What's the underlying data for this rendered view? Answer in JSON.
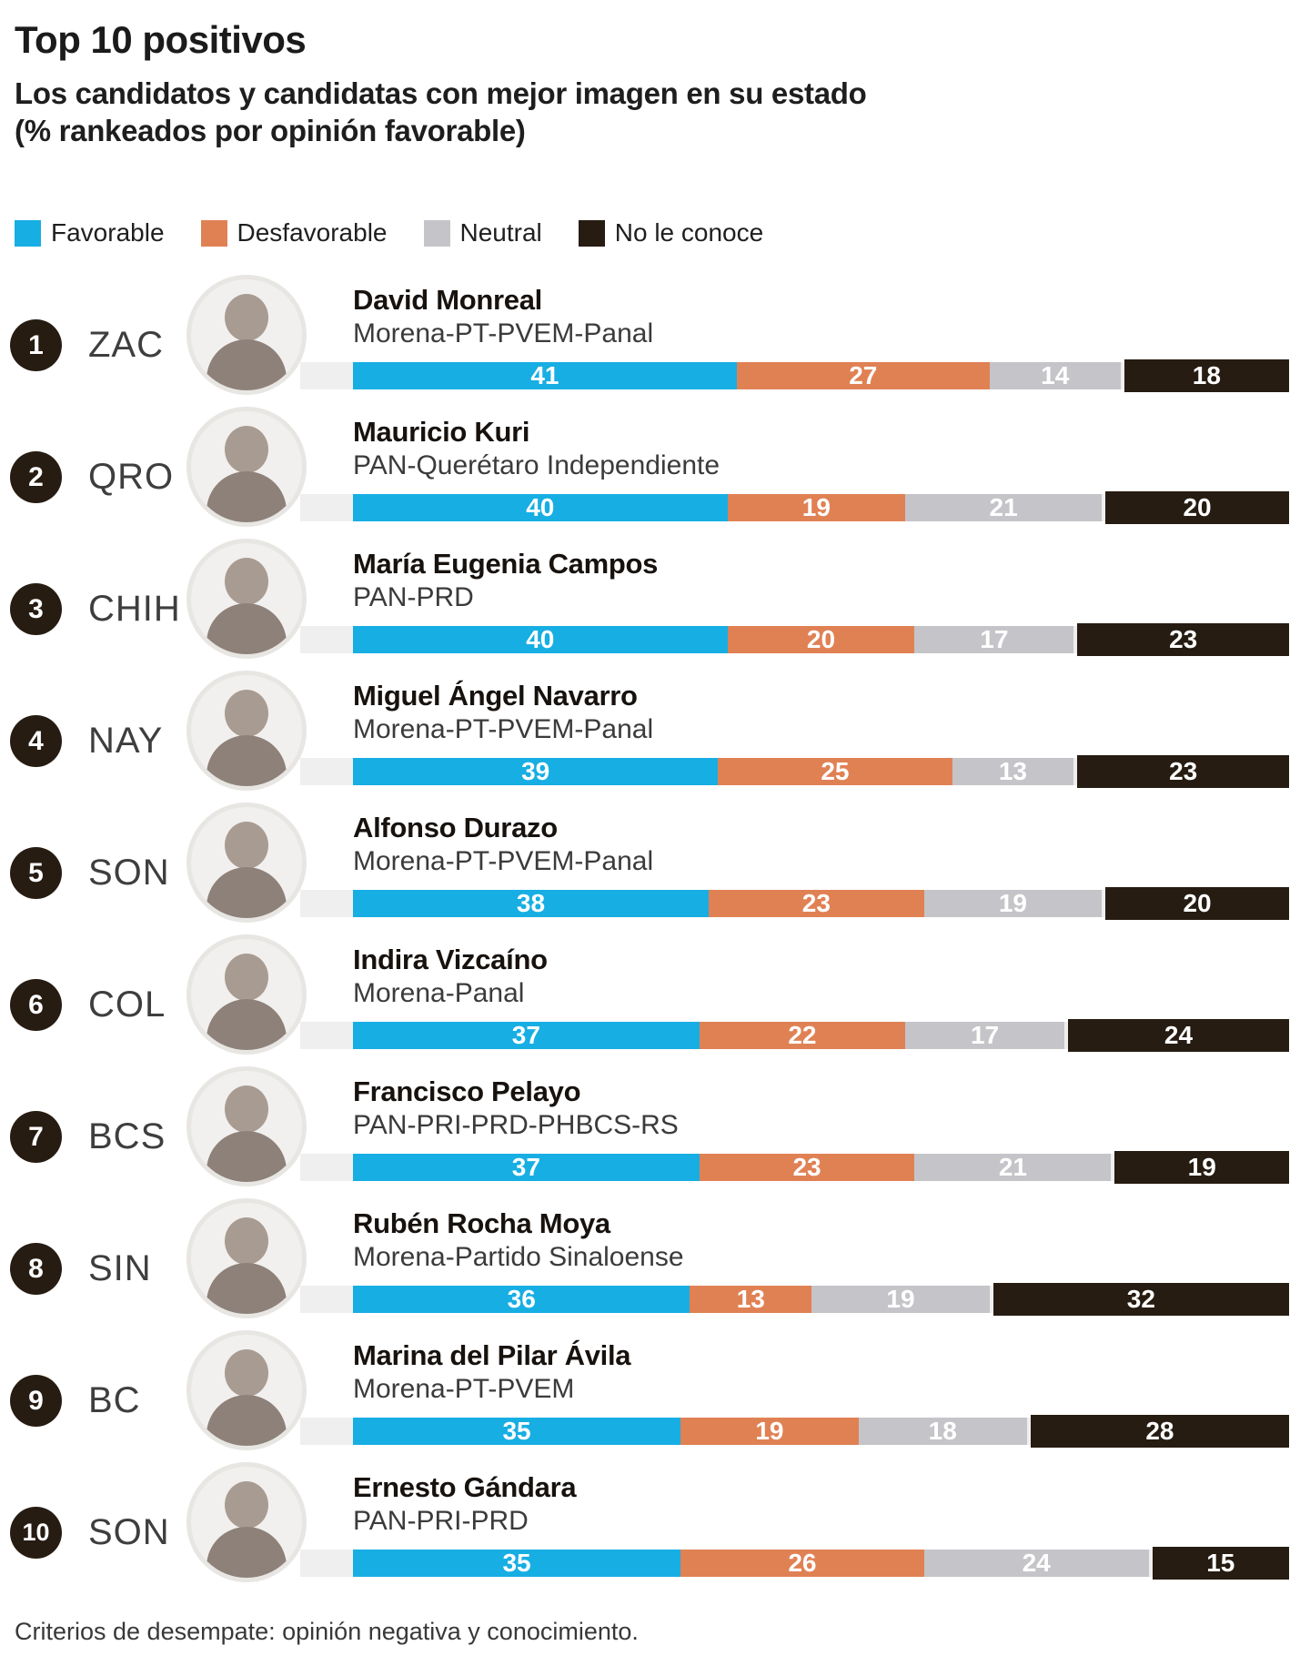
{
  "header": {
    "title": "Top 10 positivos",
    "subtitle_line1": "Los candidatos y candidatas con mejor imagen en su estado",
    "subtitle_line2": "(% rankeados por opinión favorable)"
  },
  "legend": {
    "items": [
      {
        "key": "favorable",
        "label": "Favorable",
        "color": "#17AEE3"
      },
      {
        "key": "desfavorable",
        "label": "Desfavorable",
        "color": "#E08154"
      },
      {
        "key": "neutral",
        "label": "Neutral",
        "color": "#C5C5C9"
      },
      {
        "key": "no-le-conoce",
        "label": "No le conoce",
        "color": "#261C12"
      }
    ]
  },
  "colors": {
    "badge": "#261C12",
    "track_background": "#EFEFEF"
  },
  "rows": [
    {
      "rank": "1",
      "state": "ZAC",
      "name": "David Monreal",
      "party": "Morena-PT-PVEM-Panal",
      "values": [
        41,
        27,
        14,
        18
      ]
    },
    {
      "rank": "2",
      "state": "QRO",
      "name": "Mauricio Kuri",
      "party": "PAN-Querétaro Independiente",
      "values": [
        40,
        19,
        21,
        20
      ]
    },
    {
      "rank": "3",
      "state": "CHIH",
      "name": "María Eugenia Campos",
      "party": "PAN-PRD",
      "values": [
        40,
        20,
        17,
        23
      ]
    },
    {
      "rank": "4",
      "state": "NAY",
      "name": "Miguel Ángel Navarro",
      "party": "Morena-PT-PVEM-Panal",
      "values": [
        39,
        25,
        13,
        23
      ]
    },
    {
      "rank": "5",
      "state": "SON",
      "name": "Alfonso Durazo",
      "party": "Morena-PT-PVEM-Panal",
      "values": [
        38,
        23,
        19,
        20
      ]
    },
    {
      "rank": "6",
      "state": "COL",
      "name": "Indira Vizcaíno",
      "party": "Morena-Panal",
      "values": [
        37,
        22,
        17,
        24
      ]
    },
    {
      "rank": "7",
      "state": "BCS",
      "name": "Francisco Pelayo",
      "party": "PAN-PRI-PRD-PHBCS-RS",
      "values": [
        37,
        23,
        21,
        19
      ]
    },
    {
      "rank": "8",
      "state": "SIN",
      "name": "Rubén Rocha Moya",
      "party": "Morena-Partido Sinaloense",
      "values": [
        36,
        13,
        19,
        32
      ]
    },
    {
      "rank": "9",
      "state": "BC",
      "name": "Marina del Pilar Ávila",
      "party": "Morena-PT-PVEM",
      "values": [
        35,
        19,
        18,
        28
      ]
    },
    {
      "rank": "10",
      "state": "SON",
      "name": "Ernesto Gándara",
      "party": "PAN-PRI-PRD",
      "values": [
        35,
        26,
        24,
        15
      ]
    }
  ],
  "chart_data": {
    "type": "bar",
    "stacked": true,
    "orientation": "horizontal",
    "title": "Top 10 positivos",
    "subtitle": "Los candidatos y candidatas con mejor imagen en su estado (% rankeados por opinión favorable)",
    "categories": [
      "David Monreal",
      "Mauricio Kuri",
      "María Eugenia Campos",
      "Miguel Ángel Navarro",
      "Alfonso Durazo",
      "Indira Vizcaíno",
      "Francisco Pelayo",
      "Rubén Rocha Moya",
      "Marina del Pilar Ávila",
      "Ernesto Gándara"
    ],
    "category_states": [
      "ZAC",
      "QRO",
      "CHIH",
      "NAY",
      "SON",
      "COL",
      "BCS",
      "SIN",
      "BC",
      "SON"
    ],
    "series": [
      {
        "name": "Favorable",
        "color": "#17AEE3",
        "values": [
          41,
          40,
          40,
          39,
          38,
          37,
          37,
          36,
          35,
          35
        ]
      },
      {
        "name": "Desfavorable",
        "color": "#E08154",
        "values": [
          27,
          19,
          20,
          25,
          23,
          22,
          23,
          13,
          19,
          26
        ]
      },
      {
        "name": "Neutral",
        "color": "#C5C5C9",
        "values": [
          14,
          21,
          17,
          13,
          19,
          17,
          21,
          19,
          18,
          24
        ]
      },
      {
        "name": "No le conoce",
        "color": "#261C12",
        "values": [
          18,
          20,
          23,
          23,
          20,
          24,
          19,
          32,
          28,
          15
        ]
      }
    ],
    "xlim": [
      0,
      100
    ],
    "legend_position": "top",
    "grid": false
  },
  "footer": {
    "note": "Criterios de desempate: opinión negativa y conocimiento."
  }
}
